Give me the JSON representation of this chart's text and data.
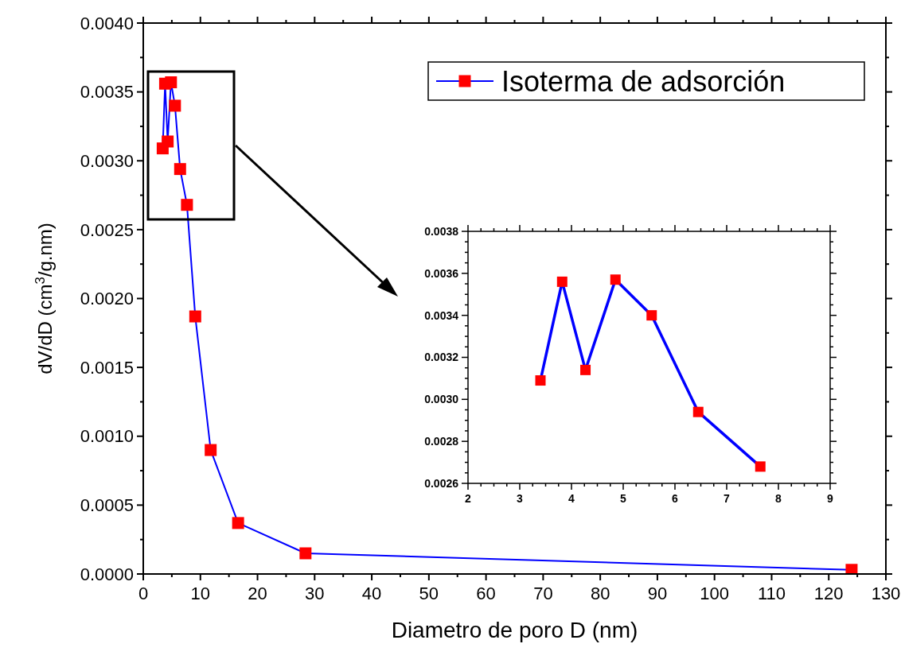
{
  "chart_data": [
    {
      "type": "line",
      "xlabel": "Diametro de poro D (nm)",
      "ylabel": "dV/dD (cm$^{3}$/g.nm)",
      "xlim": [
        0,
        130
      ],
      "ylim": [
        0,
        0.004
      ],
      "xticks": [
        0,
        10,
        20,
        30,
        40,
        50,
        60,
        70,
        80,
        90,
        100,
        110,
        120,
        130
      ],
      "yticks": [
        {
          "value": 0,
          "label": "0.0000"
        },
        {
          "value": 0.0005,
          "label": "0.0005"
        },
        {
          "value": 0.001,
          "label": "0.0010"
        },
        {
          "value": 0.0015,
          "label": "0.0015"
        },
        {
          "value": 0.002,
          "label": "0.0020"
        },
        {
          "value": 0.0025,
          "label": "0.0025"
        },
        {
          "value": 0.003,
          "label": "0.0030"
        },
        {
          "value": 0.0035,
          "label": "0.0035"
        },
        {
          "value": 0.004,
          "label": "0.0040"
        }
      ],
      "legend": "top right",
      "marker": "square",
      "line_style": "solid",
      "grid": false,
      "series": [
        {
          "name": "Isoterma de adsorción",
          "color": "#0000ff",
          "colors": [
            "#ff0000",
            "#ff0000",
            "#ff0000",
            "#ff0000",
            "#ff0000",
            "#ff0000",
            "#ff0000",
            "#ff0000",
            "#ff0000",
            "#ff0000",
            "#ff0000",
            "#ff0000"
          ],
          "x": [
            3.4,
            3.82,
            4.27,
            4.85,
            5.55,
            6.45,
            7.65,
            9.1,
            11.8,
            16.6,
            28.4,
            124
          ],
          "values": [
            0.00309,
            0.00356,
            0.00314,
            0.00357,
            0.0034,
            0.00294,
            0.00268,
            0.00187,
            0.0009,
            0.00037,
            0.00015,
            3e-05
          ]
        }
      ]
    },
    {
      "type": "line",
      "xlim": [
        2,
        9
      ],
      "ylim": [
        0.0026,
        0.0038
      ],
      "xticks": [
        2,
        3,
        4,
        5,
        6,
        7,
        8,
        9
      ],
      "yticks": [
        {
          "value": 0.0026,
          "label": "0.0026"
        },
        {
          "value": 0.0028,
          "label": "0.0028"
        },
        {
          "value": 0.003,
          "label": "0.0030"
        },
        {
          "value": 0.0032,
          "label": "0.0032"
        },
        {
          "value": 0.0034,
          "label": "0.0034"
        },
        {
          "value": 0.0036,
          "label": "0.0036"
        },
        {
          "value": 0.0038,
          "label": "0.0038"
        }
      ],
      "marker": "square",
      "line_style": "solid",
      "grid": false,
      "legend": false,
      "series": [
        {
          "color": "#0000ff",
          "colors": [
            "#ff0000",
            "#ff0000",
            "#ff0000",
            "#ff0000",
            "#ff0000",
            "#ff0000",
            "#ff0000"
          ],
          "x": [
            3.4,
            3.82,
            4.27,
            4.85,
            5.55,
            6.45,
            7.65
          ],
          "values": [
            0.00309,
            0.00356,
            0.00314,
            0.00357,
            0.0034,
            0.00294,
            0.00268
          ]
        }
      ]
    }
  ]
}
